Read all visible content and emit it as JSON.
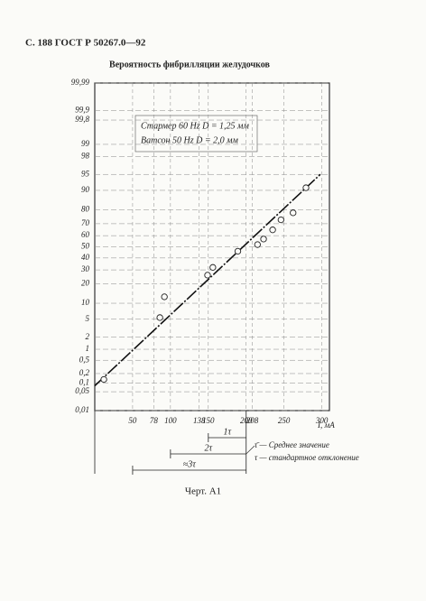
{
  "header": "С. 188 ГОСТ Р 50267.0—92",
  "chart_data": {
    "type": "scatter",
    "title": "Вероятность фибрилляции желудочков",
    "x_label": "I, мА",
    "y_scale": "probability",
    "x": [
      12,
      86,
      92,
      149,
      156,
      189,
      215,
      223,
      235,
      246,
      262,
      279
    ],
    "values": [
      0.13,
      5.4,
      12.8,
      26,
      32,
      46,
      52,
      57,
      65,
      73,
      78,
      91
    ],
    "color": "#222",
    "xlim": [
      0,
      310
    ],
    "ylim": [
      0.01,
      99.99
    ],
    "xticks": [
      50,
      78,
      100,
      138,
      150,
      200,
      208,
      250,
      300
    ],
    "yticks": [
      {
        "value": 0.01,
        "label": "0,01"
      },
      {
        "value": 0.05,
        "label": "0,05"
      },
      {
        "value": 0.1,
        "label": "0,1"
      },
      {
        "value": 0.2,
        "label": "0,2"
      },
      {
        "value": 0.5,
        "label": "0,5"
      },
      1,
      2,
      5,
      10,
      20,
      30,
      40,
      50,
      60,
      70,
      80,
      90,
      95,
      98,
      99,
      {
        "value": 99.8,
        "label": "99,8"
      },
      {
        "value": 99.9,
        "label": "99,9"
      },
      {
        "value": 99.99,
        "label": "99,99"
      }
    ],
    "grid": true,
    "legend": [
      "Стармер 60 Hz D = 1,25 мм",
      "Ватсон 50 Hz D = 2,0 мм"
    ],
    "fit_line": {
      "x": [
        0,
        298
      ],
      "values": [
        0.08,
        95
      ]
    },
    "spans": [
      {
        "label": "1τ",
        "from": 150,
        "to": 200
      },
      {
        "label": "2τ",
        "from": 100,
        "to": 200
      },
      {
        "label": "≈3τ",
        "from": 50,
        "to": 200
      }
    ],
    "notes": [
      "τ̄ — Среднее значение",
      "τ — стандартное отклонение"
    ]
  },
  "caption": "Черт. А1"
}
